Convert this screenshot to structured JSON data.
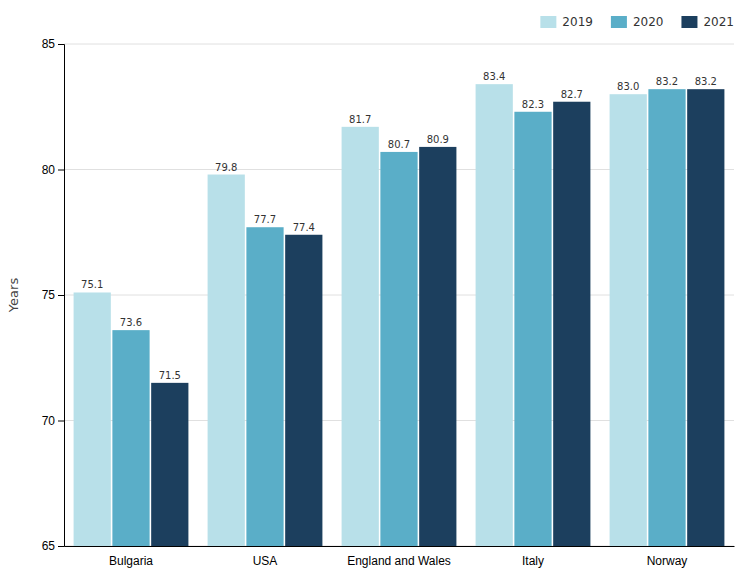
{
  "chart_data": {
    "type": "bar",
    "categories": [
      "Bulgaria",
      "USA",
      "England and Wales",
      "Italy",
      "Norway"
    ],
    "series": [
      {
        "name": "2019",
        "color": "#b8e0e9",
        "values": [
          75.1,
          79.8,
          81.7,
          83.4,
          83.0
        ],
        "value_labels": [
          "75.1",
          "79.8",
          "81.7",
          "83.4",
          "83.0"
        ]
      },
      {
        "name": "2020",
        "color": "#5aaec8",
        "values": [
          73.6,
          77.7,
          80.7,
          82.3,
          83.2
        ],
        "value_labels": [
          "73.6",
          "77.7",
          "80.7",
          "82.3",
          "83.2"
        ]
      },
      {
        "name": "2021",
        "color": "#1c3f5e",
        "values": [
          71.5,
          77.4,
          80.9,
          82.7,
          83.2
        ],
        "value_labels": [
          "71.5",
          "77.4",
          "80.9",
          "82.7",
          "83.2"
        ]
      }
    ],
    "ylabel": "Years",
    "ylim": [
      65,
      85
    ],
    "yticks": [
      65,
      70,
      75,
      80,
      85
    ],
    "grid": true,
    "legend": "upper right",
    "data_labels": true
  }
}
